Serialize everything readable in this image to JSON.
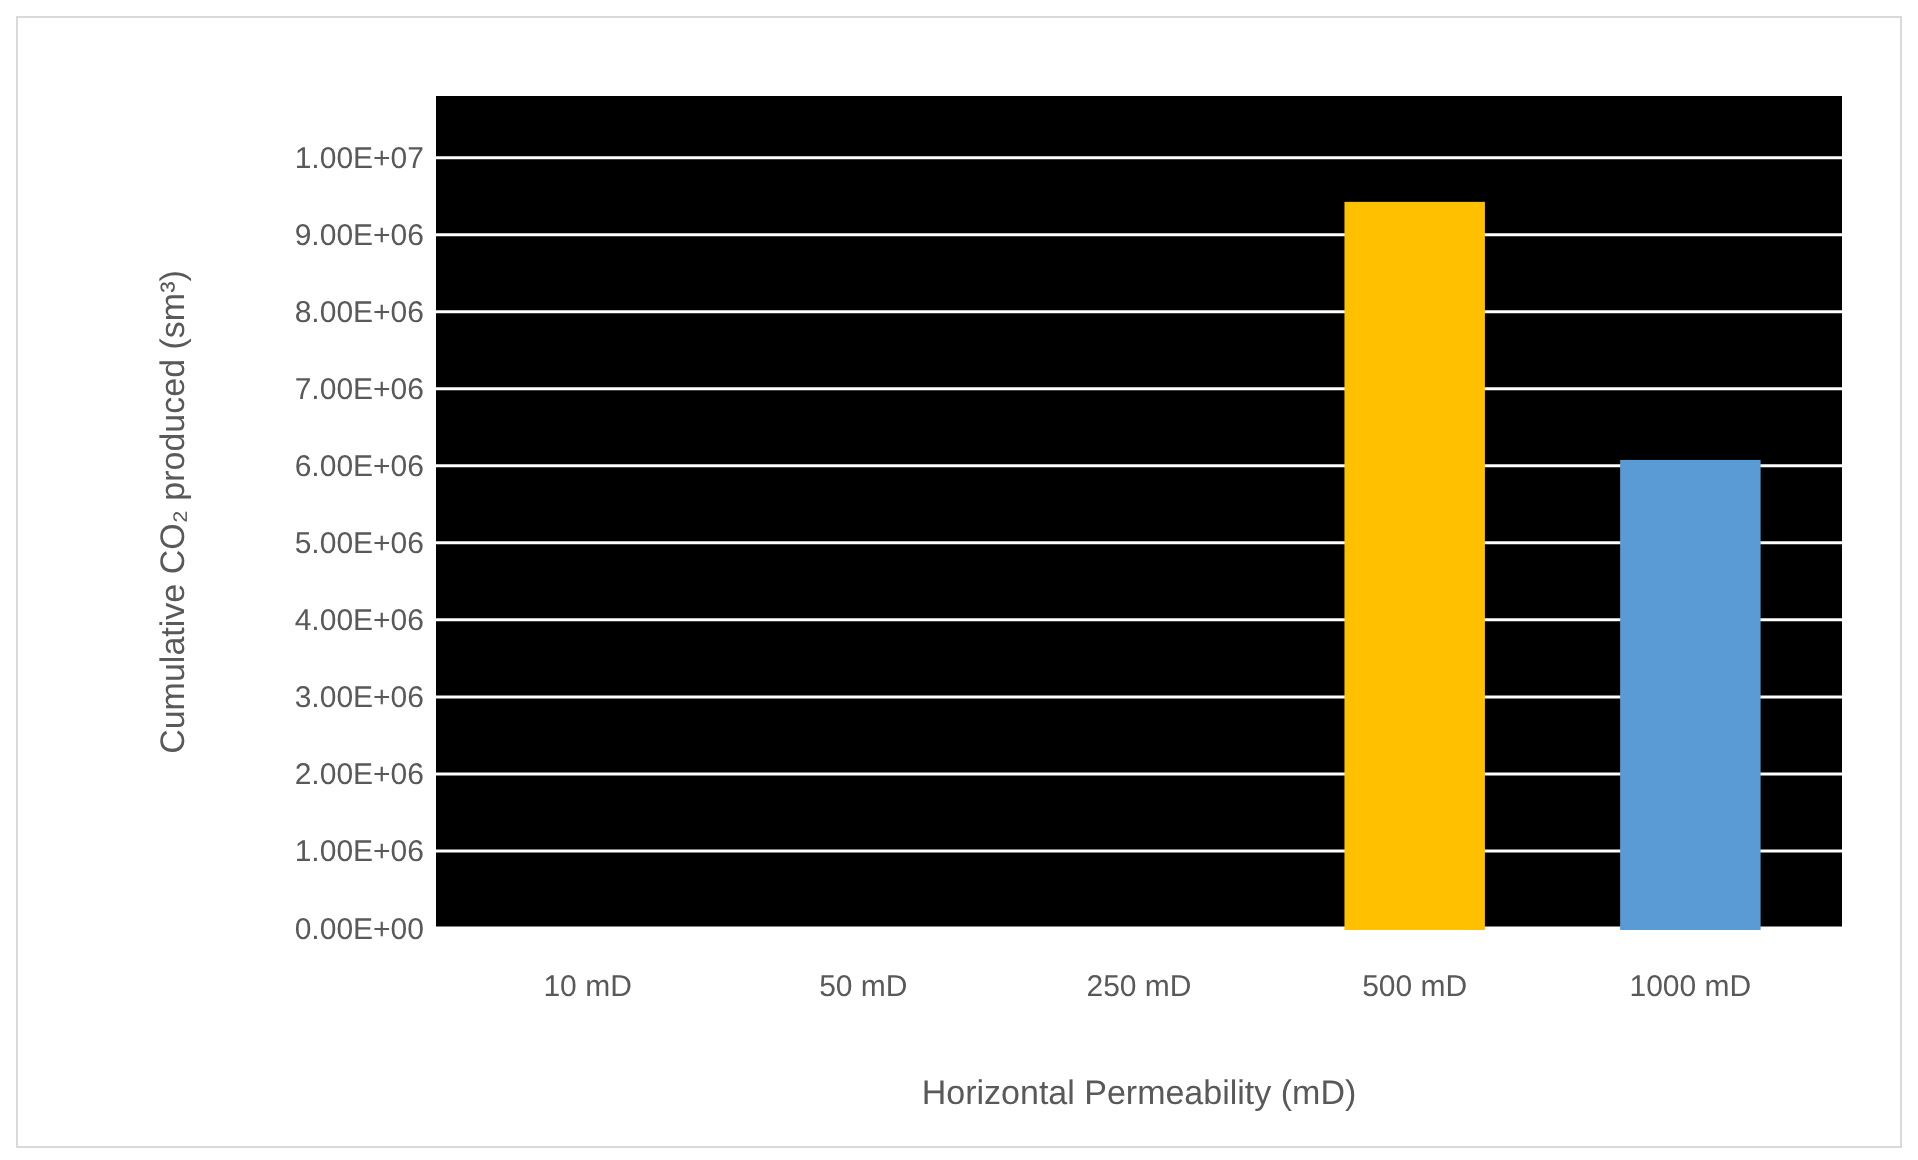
{
  "chart_data": {
    "type": "bar",
    "xlabel": "Horizontal Permeability (mD)",
    "ylabel": "Cumulative CO₂ produced (sm³)",
    "categories": [
      "10 mD",
      "50 mD",
      "250 mD",
      "500 mD",
      "1000 mD"
    ],
    "values": [
      0,
      0,
      0,
      9400000,
      6050000
    ],
    "colors": [
      "#4472c4",
      "#ed7d31",
      "#a5a5a5",
      "#ffc000",
      "#5b9bd5"
    ],
    "ylim": [
      0,
      10800000
    ],
    "yticks": [
      {
        "value": 0,
        "label": "0.00E+00"
      },
      {
        "value": 1000000,
        "label": "1.00E+06"
      },
      {
        "value": 2000000,
        "label": "2.00E+06"
      },
      {
        "value": 3000000,
        "label": "3.00E+06"
      },
      {
        "value": 4000000,
        "label": "4.00E+06"
      },
      {
        "value": 5000000,
        "label": "5.00E+06"
      },
      {
        "value": 6000000,
        "label": "6.00E+06"
      },
      {
        "value": 7000000,
        "label": "7.00E+06"
      },
      {
        "value": 8000000,
        "label": "8.00E+06"
      },
      {
        "value": 9000000,
        "label": "9.00E+06"
      },
      {
        "value": 10000000,
        "label": "1.00E+07"
      }
    ],
    "grid": "y"
  }
}
